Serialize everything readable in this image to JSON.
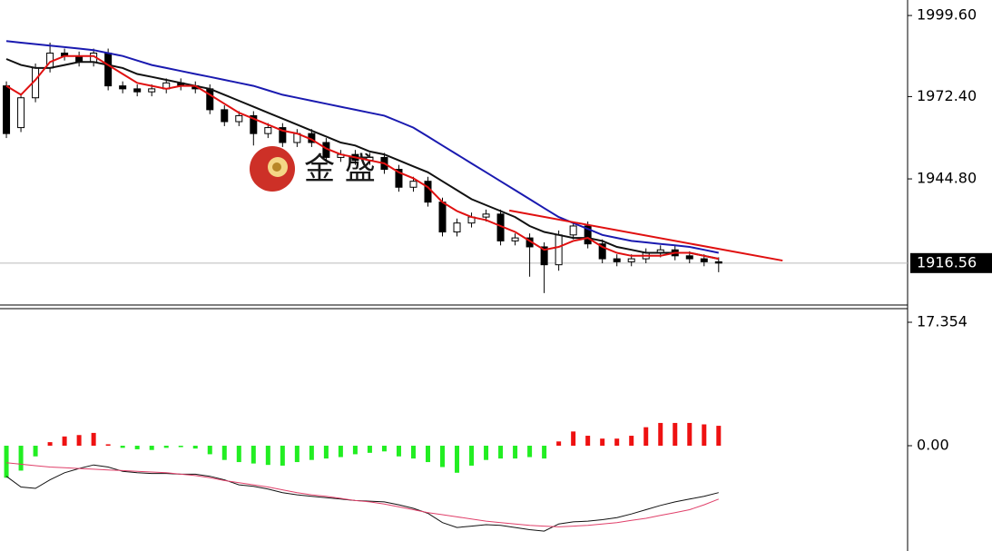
{
  "chart_data": [
    {
      "type": "candlestick",
      "watermark": "金 盛",
      "xlim": [
        -0.44,
        62
      ],
      "ylim": [
        1902.5,
        2004.8
      ],
      "yticks": [
        {
          "value": 1999.6,
          "label": "1999.60"
        },
        {
          "value": 1972.4,
          "label": "1972.40"
        },
        {
          "value": 1944.8,
          "label": "1944.80"
        }
      ],
      "last_price": 1916.56,
      "open": [
        1976,
        1962,
        1972,
        1982,
        1987,
        1986,
        1984,
        1987,
        1976,
        1975,
        1974,
        1975,
        1977,
        1976,
        1975,
        1968,
        1964,
        1966,
        1960,
        1962,
        1957,
        1960,
        1957,
        1952,
        1953,
        1951,
        1952,
        1948,
        1942,
        1944,
        1937,
        1927,
        1930,
        1932,
        1933,
        1924,
        1925,
        1922,
        1916,
        1926,
        1929,
        1923,
        1918,
        1917,
        1918,
        1920,
        1921,
        1919,
        1918,
        1917
      ],
      "high": [
        1977.5,
        1973.5,
        1983.5,
        1990.5,
        1988.5,
        1987.5,
        1988.5,
        1988.5,
        1977.5,
        1976.5,
        1976.5,
        1978.5,
        1978.5,
        1977.5,
        1976.5,
        1969.5,
        1967.5,
        1967.5,
        1963.5,
        1963.5,
        1961.5,
        1961.5,
        1958.5,
        1954.5,
        1954.5,
        1953.5,
        1953.5,
        1949.5,
        1945.5,
        1945.5,
        1938.5,
        1931.5,
        1933.5,
        1934.5,
        1934.5,
        1926.5,
        1926.5,
        1923.5,
        1927.5,
        1930.5,
        1930.5,
        1924.5,
        1919.5,
        1919.5,
        1921.5,
        1922.5,
        1922.5,
        1920.5,
        1919.5,
        1918.5
      ],
      "low": [
        1958.5,
        1960.5,
        1970.5,
        1980.5,
        1984.5,
        1982.5,
        1982.5,
        1974.5,
        1973.5,
        1972.5,
        1972.5,
        1973.5,
        1974.5,
        1973.5,
        1966.5,
        1962.5,
        1962.5,
        1956,
        1958.5,
        1955.5,
        1955.5,
        1955.5,
        1950.5,
        1950.5,
        1949.5,
        1949.5,
        1946.5,
        1940.5,
        1940.5,
        1935.5,
        1925.5,
        1925.5,
        1928.5,
        1930.5,
        1922.5,
        1922.5,
        1912,
        1906.5,
        1914,
        1924.5,
        1921.5,
        1916.5,
        1915.5,
        1915.5,
        1916.5,
        1918.5,
        1917.5,
        1916.5,
        1915.5,
        1913.5
      ],
      "close": [
        1960,
        1972,
        1982,
        1987,
        1986,
        1984,
        1987,
        1976,
        1975,
        1974,
        1975,
        1977,
        1976,
        1975,
        1968,
        1964,
        1966,
        1960,
        1962,
        1957,
        1960,
        1957,
        1952,
        1953,
        1951,
        1952,
        1948,
        1942,
        1944,
        1937,
        1927,
        1930,
        1932,
        1933,
        1924,
        1925,
        1922,
        1916,
        1926,
        1929,
        1923,
        1918,
        1917,
        1918,
        1920,
        1921,
        1919,
        1918,
        1917,
        1916.56
      ],
      "lines": [
        {
          "color": "#1a1ab0",
          "values": [
            1991,
            1990.5,
            1990,
            1989.5,
            1989,
            1988.5,
            1988,
            1987,
            1986,
            1984.5,
            1983,
            1982,
            1981,
            1980,
            1979,
            1978,
            1977,
            1976,
            1974.5,
            1973,
            1972,
            1971,
            1970,
            1969,
            1968,
            1967,
            1966,
            1964,
            1962,
            1959,
            1956,
            1953,
            1950,
            1947,
            1944,
            1941,
            1938,
            1935,
            1932,
            1930,
            1928,
            1926,
            1925,
            1924,
            1923.5,
            1923,
            1922.5,
            1922,
            1921,
            1920
          ]
        },
        {
          "color": "#111111",
          "values": [
            1985,
            1983,
            1982,
            1982,
            1983,
            1984,
            1984,
            1983,
            1982,
            1980,
            1979,
            1978,
            1977,
            1976,
            1975,
            1973,
            1971,
            1969,
            1967,
            1965,
            1963,
            1961,
            1959,
            1957,
            1956,
            1954,
            1953,
            1951,
            1949,
            1947,
            1944,
            1941,
            1938,
            1936,
            1934,
            1932,
            1929,
            1927,
            1926,
            1925,
            1925,
            1924,
            1922,
            1921,
            1920,
            1920,
            1920,
            1920,
            1919,
            1918
          ]
        },
        {
          "color": "#e01010",
          "values": [
            1976,
            1973,
            1978,
            1984,
            1986,
            1986,
            1986,
            1983,
            1980,
            1977,
            1976,
            1975,
            1976,
            1976,
            1973,
            1970,
            1967,
            1965,
            1963,
            1961,
            1960,
            1958,
            1955,
            1953,
            1952,
            1951,
            1950,
            1947,
            1945,
            1942,
            1937,
            1934,
            1932,
            1931,
            1929,
            1927,
            1924,
            1921,
            1922,
            1924,
            1925,
            1922,
            1920,
            1919,
            1919,
            1919,
            1920,
            1920,
            1919,
            1918
          ]
        }
      ],
      "trendline": {
        "color": "#e01010",
        "x": [
          34.6,
          53.4
        ],
        "y": [
          1934.2,
          1917.4
        ]
      }
    },
    {
      "type": "macd",
      "xlim": [
        -0.44,
        62
      ],
      "ylim": [
        -14.8,
        19.27
      ],
      "yticks": [
        17.354,
        {
          "value": 0,
          "label": "0.00"
        }
      ],
      "values": [
        -4.5,
        -3.5,
        -1.5,
        0.5,
        1.3,
        1.5,
        1.8,
        0.2,
        -0.3,
        -0.5,
        -0.6,
        -0.3,
        -0.2,
        -0.4,
        -1.2,
        -2.0,
        -2.3,
        -2.5,
        -2.7,
        -2.8,
        -2.3,
        -2.0,
        -1.8,
        -1.6,
        -1.2,
        -1.0,
        -0.8,
        -1.5,
        -1.8,
        -2.3,
        -3.0,
        -3.8,
        -2.8,
        -2.0,
        -1.8,
        -1.8,
        -1.6,
        -1.8,
        0.6,
        2.0,
        1.4,
        1.0,
        1.0,
        1.4,
        2.6,
        3.2,
        3.2,
        3.2,
        3.0,
        2.8
      ],
      "colors": [
        "#22ee22",
        "#22ee22",
        "#22ee22",
        "#ee1111",
        "#ee1111",
        "#ee1111",
        "#ee1111",
        "#ee1111",
        "#22ee22",
        "#22ee22",
        "#22ee22",
        "#22ee22",
        "#22ee22",
        "#22ee22",
        "#22ee22",
        "#22ee22",
        "#22ee22",
        "#22ee22",
        "#22ee22",
        "#22ee22",
        "#22ee22",
        "#22ee22",
        "#22ee22",
        "#22ee22",
        "#22ee22",
        "#22ee22",
        "#22ee22",
        "#22ee22",
        "#22ee22",
        "#22ee22",
        "#22ee22",
        "#22ee22",
        "#22ee22",
        "#22ee22",
        "#22ee22",
        "#22ee22",
        "#22ee22",
        "#22ee22",
        "#ee1111",
        "#ee1111",
        "#ee1111",
        "#ee1111",
        "#ee1111",
        "#ee1111",
        "#ee1111",
        "#ee1111",
        "#ee1111",
        "#ee1111",
        "#ee1111",
        "#ee1111"
      ],
      "lines": [
        {
          "color": "#111111",
          "values": [
            -4.3,
            -5.8,
            -6.0,
            -4.8,
            -3.8,
            -3.2,
            -2.7,
            -3.0,
            -3.6,
            -3.8,
            -3.9,
            -3.9,
            -4.0,
            -4.0,
            -4.3,
            -4.8,
            -5.5,
            -5.7,
            -6.1,
            -6.6,
            -6.9,
            -7.1,
            -7.3,
            -7.5,
            -7.7,
            -7.8,
            -7.9,
            -8.3,
            -8.8,
            -9.5,
            -10.8,
            -11.5,
            -11.3,
            -11.1,
            -11.2,
            -11.5,
            -11.8,
            -12.0,
            -11.0,
            -10.7,
            -10.6,
            -10.4,
            -10.1,
            -9.6,
            -9.0,
            -8.4,
            -7.9,
            -7.5,
            -7.1,
            -6.6
          ]
        },
        {
          "color": "#e0406a",
          "values": [
            -2.4,
            -2.6,
            -2.8,
            -3.0,
            -3.1,
            -3.2,
            -3.3,
            -3.4,
            -3.5,
            -3.6,
            -3.7,
            -3.8,
            -4.0,
            -4.2,
            -4.5,
            -4.9,
            -5.2,
            -5.5,
            -5.8,
            -6.2,
            -6.6,
            -6.9,
            -7.1,
            -7.4,
            -7.7,
            -7.9,
            -8.2,
            -8.6,
            -9.0,
            -9.4,
            -9.7,
            -10.0,
            -10.3,
            -10.6,
            -10.8,
            -11.0,
            -11.2,
            -11.3,
            -11.4,
            -11.3,
            -11.2,
            -11.0,
            -10.8,
            -10.5,
            -10.2,
            -9.8,
            -9.4,
            -9.0,
            -8.3,
            -7.5
          ]
        }
      ]
    }
  ]
}
